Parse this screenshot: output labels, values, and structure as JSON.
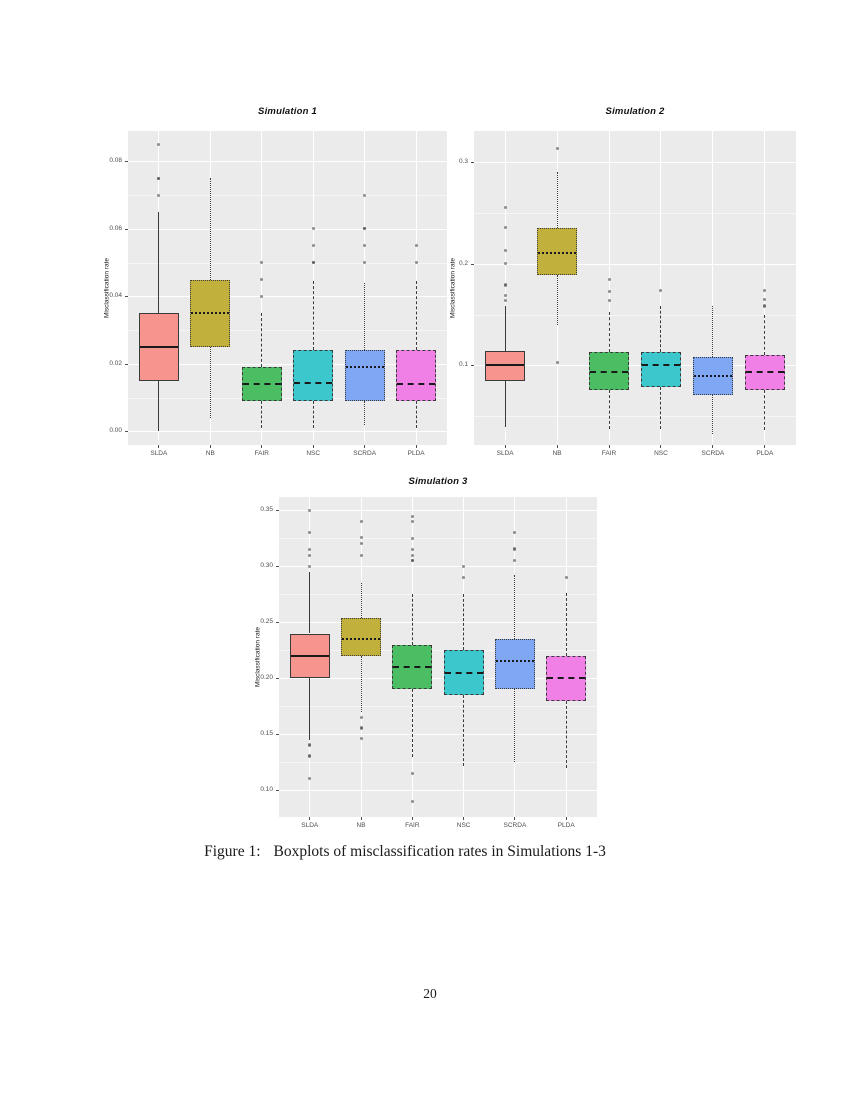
{
  "page": {
    "caption_label": "Figure 1:",
    "caption_text": "Boxplots of misclassification rates in Simulations 1-3",
    "page_number": "20"
  },
  "theme": {
    "panel_bg": "#EBEBEB",
    "grid_color": "#FFFFFF",
    "axis_text_color": "#4D4D4D",
    "box_line_color": "#3A3A3A",
    "median_color": "#1A1A1A",
    "outlier_color": "rgba(70,70,70,0.6)"
  },
  "chart_data": [
    {
      "type": "boxplot",
      "title": "Simulation 1",
      "ylabel": "Misclassification rate",
      "categories": [
        "SLDA",
        "NB",
        "FAIR",
        "NSC",
        "SCRDA",
        "PLDA"
      ],
      "ylim": [
        -0.004,
        0.089
      ],
      "yticks": [
        0.0,
        0.02,
        0.04,
        0.06,
        0.08
      ],
      "ytick_labels": [
        "0.00",
        "0.02",
        "0.04",
        "0.06",
        "0.08"
      ],
      "grid": "on",
      "series": [
        {
          "name": "SLDA",
          "fill": "#F5958D",
          "linetype": "solid",
          "whisker_low": 0.0,
          "q1": 0.015,
          "median": 0.025,
          "q3": 0.035,
          "whisker_high": 0.065,
          "outliers": [
            0.07,
            0.075,
            0.075,
            0.085
          ]
        },
        {
          "name": "NB",
          "fill": "#C1B03C",
          "linetype": "dotted",
          "whisker_low": 0.004,
          "q1": 0.025,
          "median": 0.035,
          "q3": 0.045,
          "whisker_high": 0.075,
          "outliers": []
        },
        {
          "name": "FAIR",
          "fill": "#4BBE63",
          "linetype": "dashed",
          "whisker_low": 0.001,
          "q1": 0.009,
          "median": 0.014,
          "q3": 0.019,
          "whisker_high": 0.035,
          "outliers": [
            0.04,
            0.045,
            0.05
          ]
        },
        {
          "name": "NSC",
          "fill": "#3BC7CB",
          "linetype": "dashed",
          "whisker_low": 0.001,
          "q1": 0.009,
          "median": 0.0145,
          "q3": 0.024,
          "whisker_high": 0.0445,
          "outliers": [
            0.05,
            0.05,
            0.055,
            0.06
          ]
        },
        {
          "name": "SCRDA",
          "fill": "#7FA7F3",
          "linetype": "dotted",
          "whisker_low": 0.002,
          "q1": 0.009,
          "median": 0.019,
          "q3": 0.024,
          "whisker_high": 0.044,
          "outliers": [
            0.05,
            0.055,
            0.06,
            0.06,
            0.07
          ]
        },
        {
          "name": "PLDA",
          "fill": "#F080E6",
          "linetype": "dashdot",
          "whisker_low": 0.001,
          "q1": 0.009,
          "median": 0.014,
          "q3": 0.024,
          "whisker_high": 0.0445,
          "outliers": [
            0.05,
            0.055
          ]
        }
      ]
    },
    {
      "type": "boxplot",
      "title": "Simulation 2",
      "ylabel": "Misclassification rate",
      "categories": [
        "SLDA",
        "NB",
        "FAIR",
        "NSC",
        "SCRDA",
        "PLDA"
      ],
      "ylim": [
        0.022,
        0.33
      ],
      "yticks": [
        0.1,
        0.2,
        0.3
      ],
      "ytick_labels": [
        "0.1",
        "0.2",
        "0.3"
      ],
      "grid": "on",
      "series": [
        {
          "name": "SLDA",
          "fill": "#F5958D",
          "linetype": "solid",
          "whisker_low": 0.04,
          "q1": 0.085,
          "median": 0.1,
          "q3": 0.114,
          "whisker_high": 0.158,
          "outliers": [
            0.164,
            0.169,
            0.178,
            0.179,
            0.2,
            0.213,
            0.235,
            0.255
          ]
        },
        {
          "name": "NB",
          "fill": "#C1B03C",
          "linetype": "dotted",
          "whisker_low": 0.14,
          "q1": 0.189,
          "median": 0.21,
          "q3": 0.235,
          "whisker_high": 0.29,
          "outliers": [
            0.103,
            0.313
          ]
        },
        {
          "name": "FAIR",
          "fill": "#4BBE63",
          "linetype": "dashed",
          "whisker_low": 0.038,
          "q1": 0.076,
          "median": 0.094,
          "q3": 0.113,
          "whisker_high": 0.152,
          "outliers": [
            0.164,
            0.173,
            0.184
          ]
        },
        {
          "name": "NSC",
          "fill": "#3BC7CB",
          "linetype": "dashed",
          "whisker_low": 0.038,
          "q1": 0.079,
          "median": 0.1,
          "q3": 0.113,
          "whisker_high": 0.158,
          "outliers": [
            0.174
          ]
        },
        {
          "name": "SCRDA",
          "fill": "#7FA7F3",
          "linetype": "dotted",
          "whisker_low": 0.033,
          "q1": 0.071,
          "median": 0.09,
          "q3": 0.108,
          "whisker_high": 0.158,
          "outliers": []
        },
        {
          "name": "PLDA",
          "fill": "#F080E6",
          "linetype": "dashdot",
          "whisker_low": 0.037,
          "q1": 0.076,
          "median": 0.094,
          "q3": 0.11,
          "whisker_high": 0.15,
          "outliers": [
            0.158,
            0.159,
            0.165,
            0.174
          ]
        }
      ]
    },
    {
      "type": "boxplot",
      "title": "Simulation 3",
      "ylabel": "Misclassification rate",
      "categories": [
        "SLDA",
        "NB",
        "FAIR",
        "NSC",
        "SCRDA",
        "PLDA"
      ],
      "ylim": [
        0.076,
        0.362
      ],
      "yticks": [
        0.1,
        0.15,
        0.2,
        0.25,
        0.3,
        0.35
      ],
      "ytick_labels": [
        "0.10",
        "0.15",
        "0.20",
        "0.25",
        "0.30",
        "0.35"
      ],
      "grid": "on",
      "series": [
        {
          "name": "SLDA",
          "fill": "#F5958D",
          "linetype": "solid",
          "whisker_low": 0.145,
          "q1": 0.2,
          "median": 0.22,
          "q3": 0.24,
          "whisker_high": 0.295,
          "outliers": [
            0.11,
            0.13,
            0.131,
            0.14,
            0.141,
            0.3,
            0.31,
            0.315,
            0.33,
            0.35
          ]
        },
        {
          "name": "NB",
          "fill": "#C1B03C",
          "linetype": "dotted",
          "whisker_low": 0.17,
          "q1": 0.22,
          "median": 0.235,
          "q3": 0.254,
          "whisker_high": 0.285,
          "outliers": [
            0.146,
            0.155,
            0.156,
            0.165,
            0.31,
            0.32,
            0.326,
            0.34
          ]
        },
        {
          "name": "FAIR",
          "fill": "#4BBE63",
          "linetype": "dashed",
          "whisker_low": 0.13,
          "q1": 0.19,
          "median": 0.21,
          "q3": 0.23,
          "whisker_high": 0.275,
          "outliers": [
            0.09,
            0.115,
            0.305,
            0.305,
            0.31,
            0.315,
            0.325,
            0.34,
            0.345
          ]
        },
        {
          "name": "NSC",
          "fill": "#3BC7CB",
          "linetype": "dashed",
          "whisker_low": 0.122,
          "q1": 0.185,
          "median": 0.205,
          "q3": 0.225,
          "whisker_high": 0.275,
          "outliers": [
            0.29,
            0.3
          ]
        },
        {
          "name": "SCRDA",
          "fill": "#7FA7F3",
          "linetype": "dotted",
          "whisker_low": 0.125,
          "q1": 0.19,
          "median": 0.215,
          "q3": 0.235,
          "whisker_high": 0.292,
          "outliers": [
            0.305,
            0.315,
            0.316,
            0.33
          ]
        },
        {
          "name": "PLDA",
          "fill": "#F080E6",
          "linetype": "dashdot",
          "whisker_low": 0.12,
          "q1": 0.18,
          "median": 0.2,
          "q3": 0.22,
          "whisker_high": 0.276,
          "outliers": [
            0.29
          ]
        }
      ]
    }
  ]
}
